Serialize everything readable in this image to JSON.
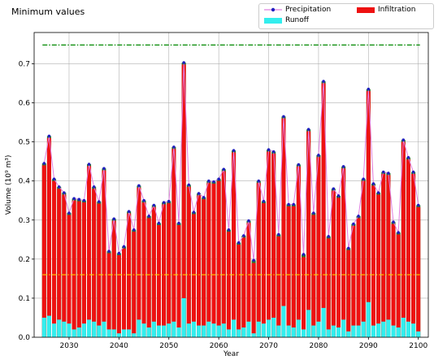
{
  "title": "Minimum values",
  "legend": {
    "precipitation": "Precipitation",
    "infiltration": "Infiltration",
    "runoff": "Runoff"
  },
  "colors": {
    "precipitation_line": "#e080e0",
    "precipitation_marker": "#2020c0",
    "infiltration": "#ee1111",
    "runoff": "#33eeee",
    "residual": "#2a7a2a",
    "upper_ref": "#008800",
    "lower_ref": "#ffcc00",
    "grid": "#b0b0b0"
  },
  "chart_data": {
    "type": "bar",
    "title": "Minimum values",
    "xlabel": "Year",
    "ylabel": "Volume (10⁹ m³)",
    "xlim": [
      2023,
      2102
    ],
    "ylim": [
      0,
      0.78
    ],
    "xticks": [
      2030,
      2040,
      2050,
      2060,
      2070,
      2080,
      2090,
      2100
    ],
    "yticks": [
      0.0,
      0.1,
      0.2,
      0.3,
      0.4,
      0.5,
      0.6,
      0.7
    ],
    "grid": true,
    "legend_position": "top-right",
    "reference_lines": [
      {
        "value": 0.748,
        "style": "dash-dot",
        "color": "#008800"
      },
      {
        "value": 0.16,
        "style": "dash-dot",
        "color": "#ffcc00"
      }
    ],
    "years": [
      2025,
      2026,
      2027,
      2028,
      2029,
      2030,
      2031,
      2032,
      2033,
      2034,
      2035,
      2036,
      2037,
      2038,
      2039,
      2040,
      2041,
      2042,
      2043,
      2044,
      2045,
      2046,
      2047,
      2048,
      2049,
      2050,
      2051,
      2052,
      2053,
      2054,
      2055,
      2056,
      2057,
      2058,
      2059,
      2060,
      2061,
      2062,
      2063,
      2064,
      2065,
      2066,
      2067,
      2068,
      2069,
      2070,
      2071,
      2072,
      2073,
      2074,
      2075,
      2076,
      2077,
      2078,
      2079,
      2080,
      2081,
      2082,
      2083,
      2084,
      2085,
      2086,
      2087,
      2088,
      2089,
      2090,
      2091,
      2092,
      2093,
      2094,
      2095,
      2096,
      2097,
      2098,
      2099,
      2100
    ],
    "series": [
      {
        "name": "Precipitation",
        "values": [
          0.445,
          0.515,
          0.405,
          0.385,
          0.37,
          0.318,
          0.355,
          0.353,
          0.35,
          0.443,
          0.385,
          0.347,
          0.432,
          0.22,
          0.303,
          0.215,
          0.232,
          0.322,
          0.275,
          0.388,
          0.35,
          0.31,
          0.338,
          0.292,
          0.345,
          0.348,
          0.487,
          0.292,
          0.703,
          0.39,
          0.32,
          0.368,
          0.358,
          0.4,
          0.398,
          0.405,
          0.43,
          0.275,
          0.478,
          0.242,
          0.26,
          0.298,
          0.197,
          0.4,
          0.348,
          0.48,
          0.475,
          0.263,
          0.565,
          0.34,
          0.34,
          0.442,
          0.212,
          0.532,
          0.318,
          0.466,
          0.655,
          0.258,
          0.38,
          0.362,
          0.437,
          0.228,
          0.29,
          0.31,
          0.405,
          0.635,
          0.393,
          0.37,
          0.423,
          0.42,
          0.295,
          0.268,
          0.505,
          0.46,
          0.423,
          0.338
        ]
      },
      {
        "name": "Infiltration",
        "values": [
          0.44,
          0.51,
          0.4,
          0.38,
          0.365,
          0.313,
          0.35,
          0.348,
          0.345,
          0.438,
          0.38,
          0.342,
          0.427,
          0.215,
          0.298,
          0.21,
          0.227,
          0.317,
          0.27,
          0.383,
          0.345,
          0.305,
          0.333,
          0.287,
          0.34,
          0.343,
          0.482,
          0.287,
          0.698,
          0.385,
          0.315,
          0.363,
          0.353,
          0.395,
          0.393,
          0.4,
          0.425,
          0.27,
          0.473,
          0.237,
          0.255,
          0.293,
          0.19,
          0.395,
          0.343,
          0.475,
          0.47,
          0.258,
          0.56,
          0.335,
          0.335,
          0.437,
          0.205,
          0.527,
          0.313,
          0.461,
          0.65,
          0.253,
          0.375,
          0.357,
          0.432,
          0.223,
          0.285,
          0.305,
          0.4,
          0.63,
          0.388,
          0.365,
          0.418,
          0.415,
          0.29,
          0.263,
          0.5,
          0.455,
          0.418,
          0.333
        ]
      },
      {
        "name": "Runoff",
        "values": [
          0.05,
          0.055,
          0.035,
          0.045,
          0.04,
          0.035,
          0.02,
          0.025,
          0.035,
          0.045,
          0.04,
          0.03,
          0.04,
          0.02,
          0.02,
          0.01,
          0.02,
          0.02,
          0.01,
          0.045,
          0.035,
          0.025,
          0.04,
          0.03,
          0.03,
          0.035,
          0.04,
          0.025,
          0.1,
          0.035,
          0.04,
          0.03,
          0.03,
          0.04,
          0.035,
          0.03,
          0.035,
          0.02,
          0.045,
          0.02,
          0.025,
          0.04,
          0.01,
          0.04,
          0.035,
          0.045,
          0.05,
          0.03,
          0.08,
          0.03,
          0.025,
          0.045,
          0.02,
          0.07,
          0.03,
          0.04,
          0.075,
          0.02,
          0.03,
          0.025,
          0.045,
          0.015,
          0.03,
          0.03,
          0.04,
          0.09,
          0.03,
          0.035,
          0.04,
          0.045,
          0.03,
          0.025,
          0.05,
          0.04,
          0.035,
          0.015
        ]
      }
    ]
  }
}
